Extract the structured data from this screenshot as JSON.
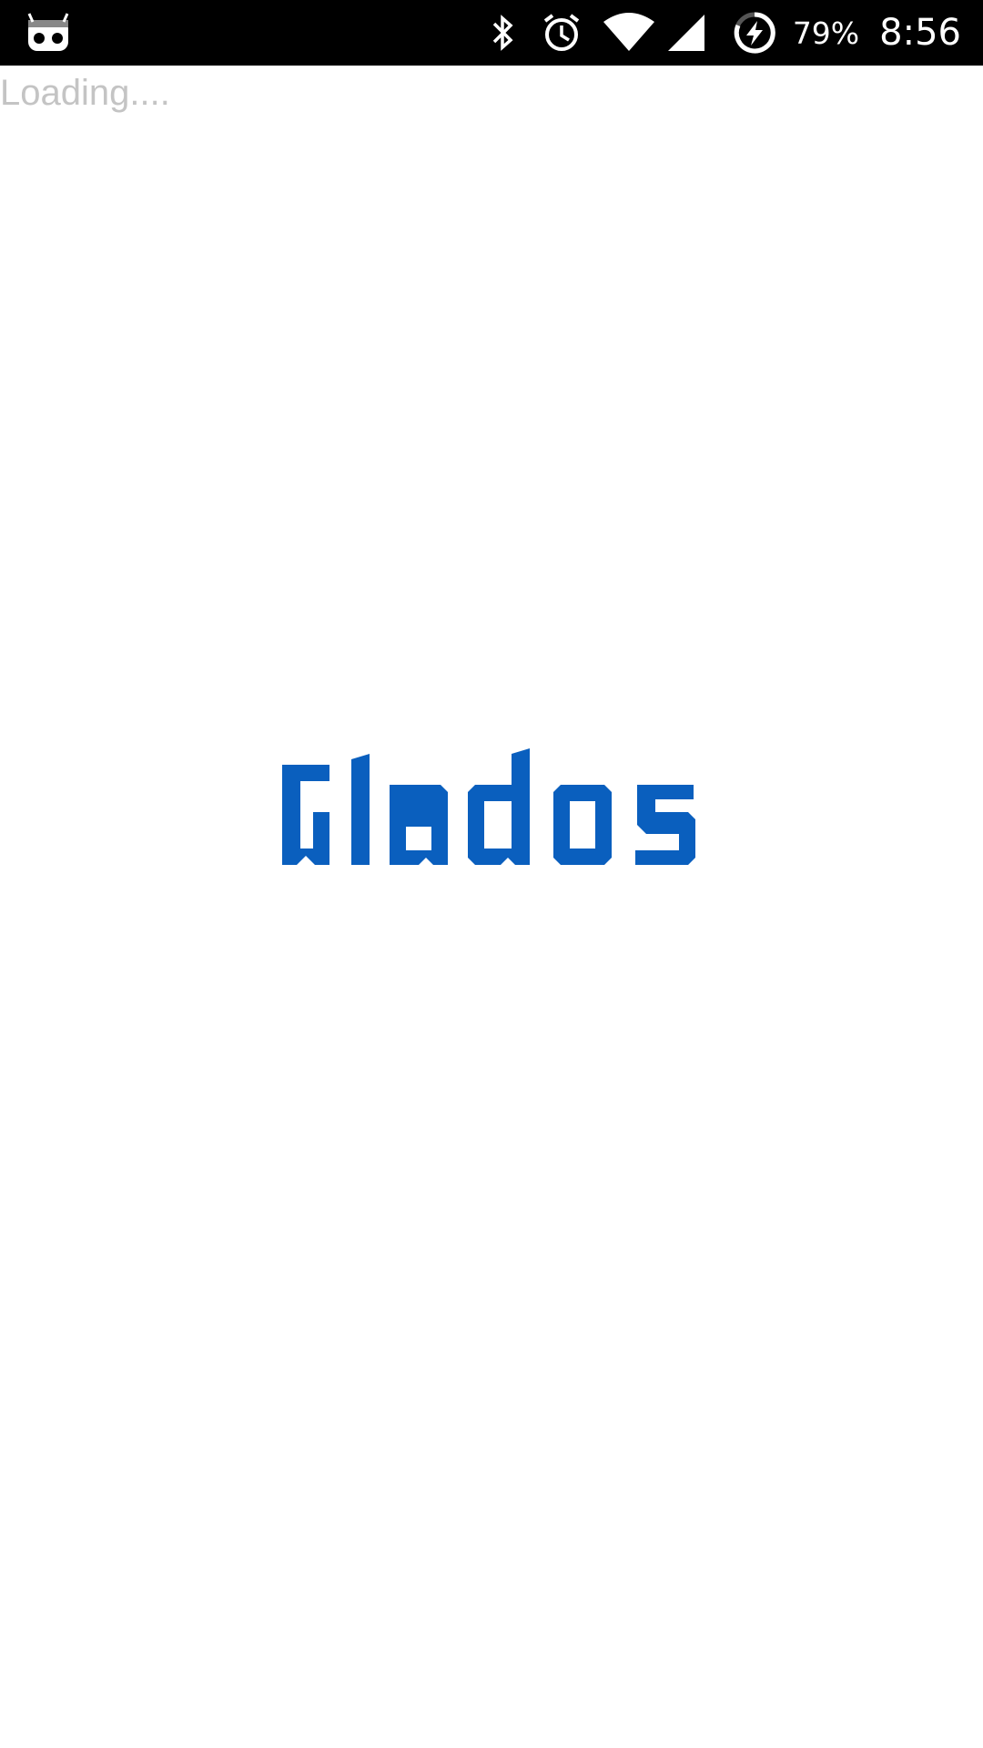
{
  "status_bar": {
    "left_icon": "cyanogenmod-robot-icon",
    "icons": [
      "bluetooth-icon",
      "alarm-icon",
      "wifi-icon",
      "cell-signal-icon",
      "battery-charging-icon"
    ],
    "battery_percent": "79%",
    "time": "8:56"
  },
  "screen": {
    "loading_text": "Loading....",
    "logo_text": "Glados",
    "logo_color": "#0a5fbe"
  }
}
